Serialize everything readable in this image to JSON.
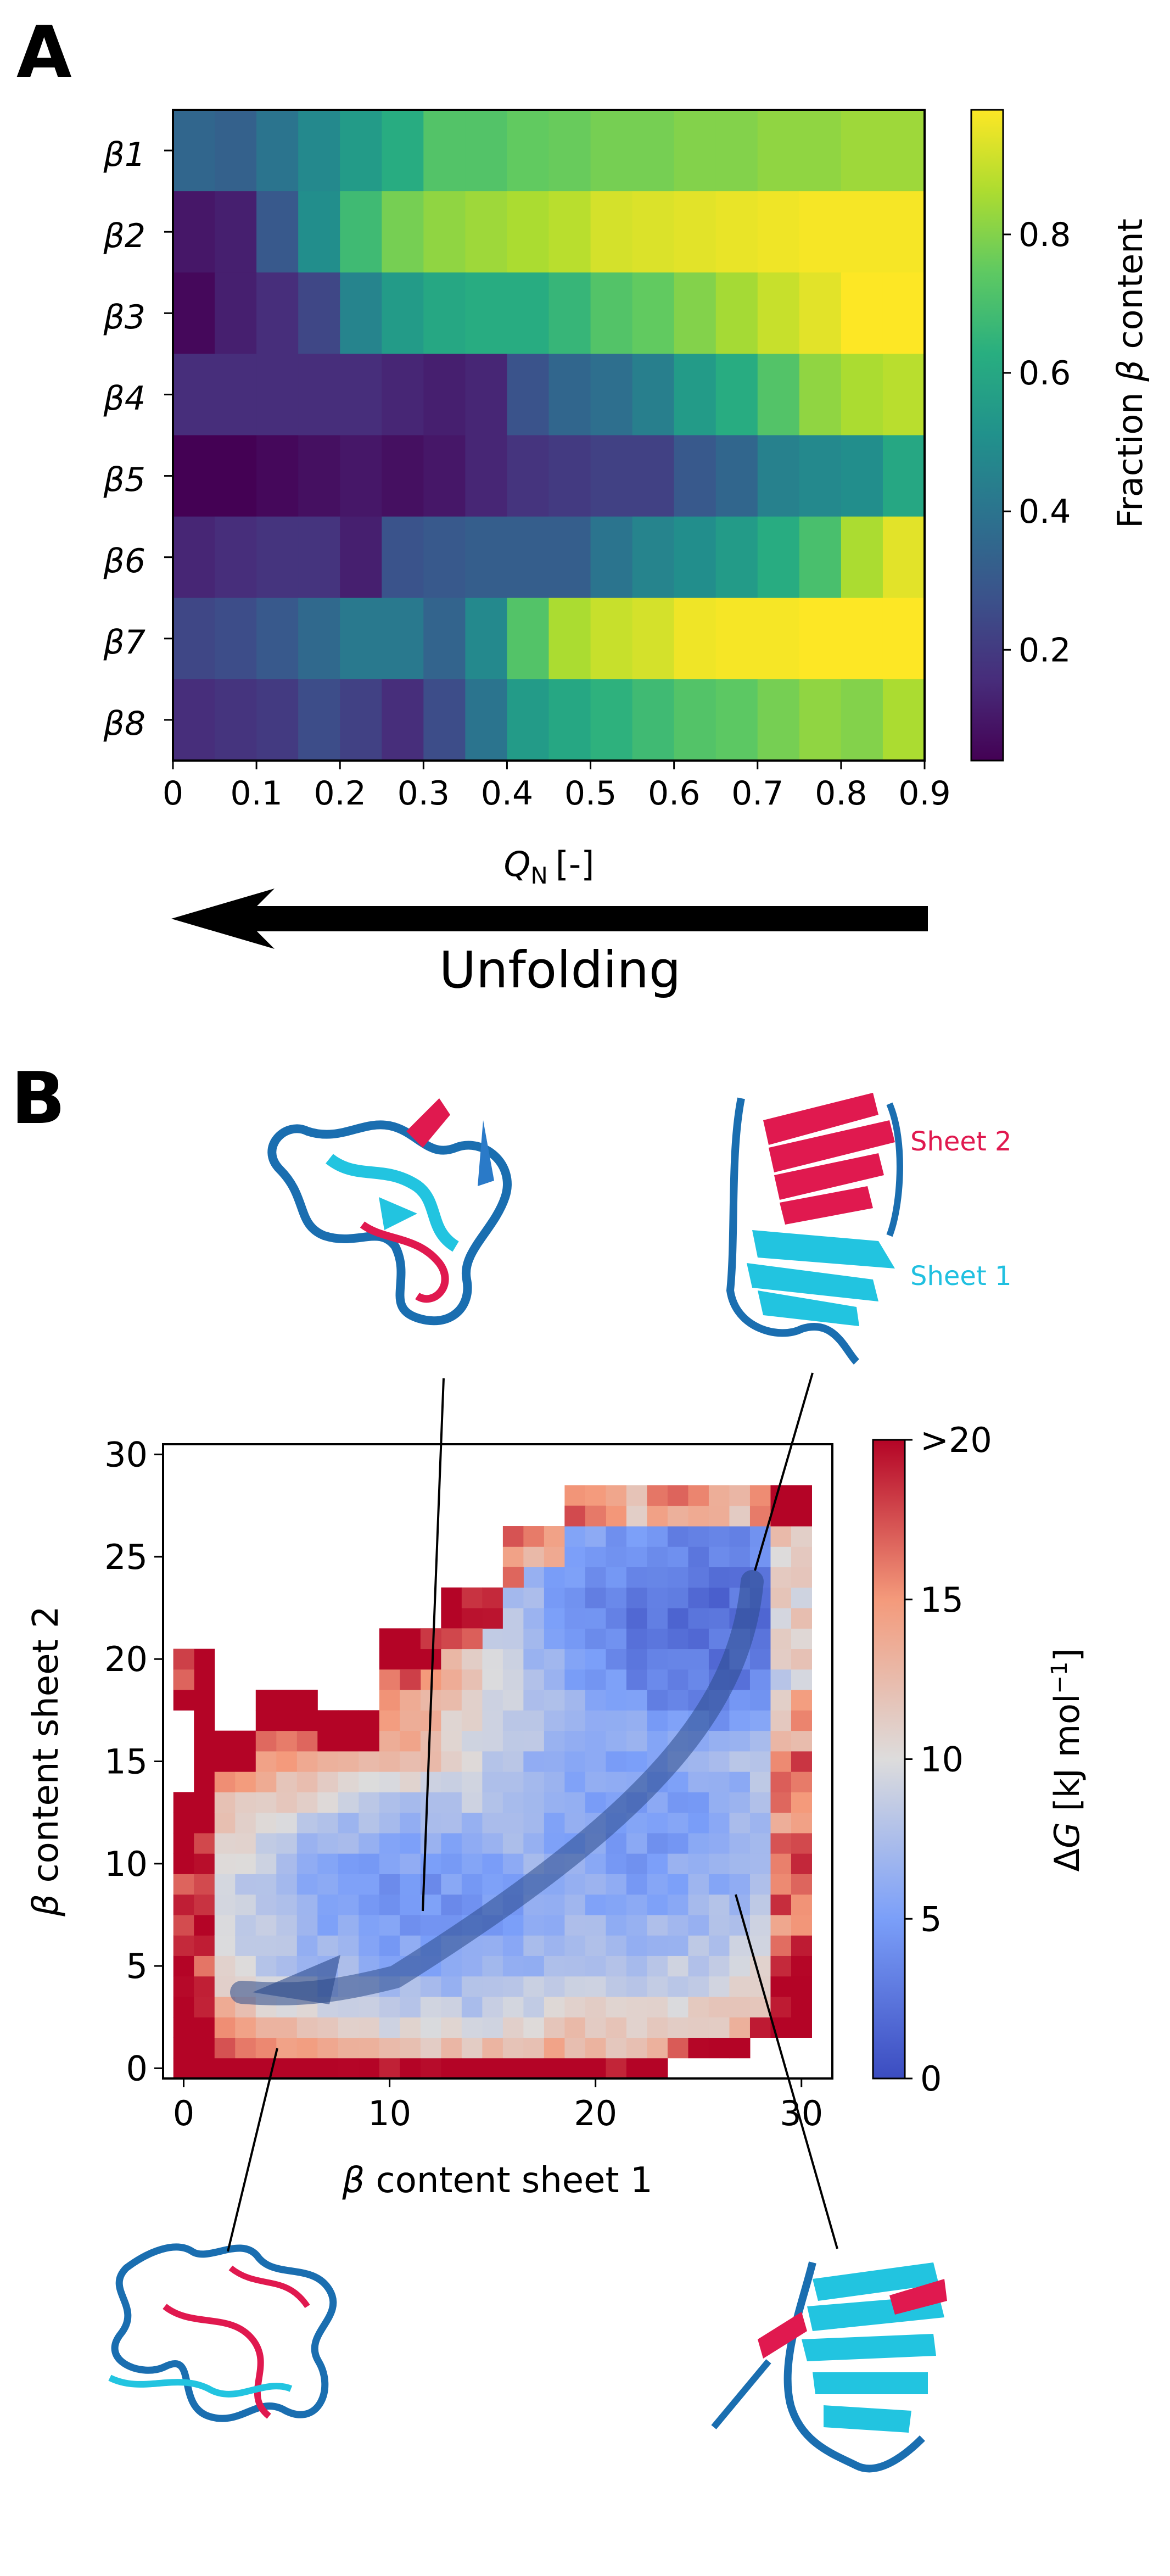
{
  "panelA": {
    "label": "A",
    "unfolding_label": "Unfolding",
    "chart_data": {
      "type": "heatmap",
      "xlabel": "Q",
      "xlabel_sub": "N",
      "xlabel_unit": "[-]",
      "x_ticks": [
        "0",
        "0.1",
        "0.2",
        "0.3",
        "0.4",
        "0.5",
        "0.6",
        "0.7",
        "0.8",
        "0.9"
      ],
      "xlim": [
        0,
        0.9
      ],
      "bin_width": 0.05,
      "rows": [
        "β1",
        "β2",
        "β3",
        "β4",
        "β5",
        "β6",
        "β7",
        "β8"
      ],
      "colorbar_label_pre": "Fraction ",
      "colorbar_label_beta": "β",
      "colorbar_label_post": " content",
      "colorbar_ticks": [
        "0.2",
        "0.4",
        "0.6",
        "0.8"
      ],
      "colorbar_tick_values": [
        0.2,
        0.4,
        0.6,
        0.8
      ],
      "vmin": 0.04,
      "vmax": 0.98,
      "values": [
        [
          0.35,
          0.33,
          0.4,
          0.48,
          0.55,
          0.62,
          0.72,
          0.72,
          0.75,
          0.76,
          0.78,
          0.78,
          0.8,
          0.8,
          0.82,
          0.82,
          0.84,
          0.84
        ],
        [
          0.1,
          0.12,
          0.3,
          0.5,
          0.68,
          0.78,
          0.82,
          0.84,
          0.86,
          0.88,
          0.92,
          0.93,
          0.94,
          0.95,
          0.96,
          0.97,
          0.97,
          0.97
        ],
        [
          0.06,
          0.12,
          0.16,
          0.24,
          0.46,
          0.55,
          0.6,
          0.62,
          0.62,
          0.66,
          0.72,
          0.75,
          0.8,
          0.85,
          0.9,
          0.94,
          0.98,
          0.98
        ],
        [
          0.16,
          0.16,
          0.16,
          0.16,
          0.16,
          0.14,
          0.12,
          0.14,
          0.28,
          0.35,
          0.38,
          0.44,
          0.55,
          0.62,
          0.72,
          0.82,
          0.86,
          0.88
        ],
        [
          0.04,
          0.04,
          0.06,
          0.08,
          0.1,
          0.08,
          0.1,
          0.14,
          0.18,
          0.2,
          0.22,
          0.22,
          0.3,
          0.35,
          0.45,
          0.48,
          0.5,
          0.6
        ],
        [
          0.14,
          0.16,
          0.18,
          0.18,
          0.12,
          0.28,
          0.3,
          0.32,
          0.32,
          0.32,
          0.4,
          0.46,
          0.5,
          0.55,
          0.62,
          0.7,
          0.86,
          0.94
        ],
        [
          0.24,
          0.26,
          0.3,
          0.36,
          0.42,
          0.42,
          0.34,
          0.48,
          0.72,
          0.86,
          0.9,
          0.92,
          0.96,
          0.97,
          0.97,
          0.98,
          0.98,
          0.98
        ],
        [
          0.16,
          0.18,
          0.2,
          0.26,
          0.22,
          0.16,
          0.26,
          0.4,
          0.55,
          0.6,
          0.64,
          0.68,
          0.72,
          0.74,
          0.78,
          0.82,
          0.8,
          0.86
        ]
      ]
    }
  },
  "panelB": {
    "label": "B",
    "sheet2_label": "Sheet 2",
    "sheet1_label": "Sheet 1",
    "sheet2_color": "#e0194f",
    "sheet1_color": "#20c0e0",
    "chart_data": {
      "type": "heatmap",
      "xlabel_beta": "β",
      "xlabel": " content sheet 1",
      "ylabel_beta": "β",
      "ylabel": " content sheet 2",
      "x_ticks": [
        "0",
        "10",
        "20",
        "30"
      ],
      "x_tick_values": [
        0,
        10,
        20,
        30
      ],
      "y_ticks": [
        "0",
        "5",
        "10",
        "15",
        "20",
        "25",
        "30"
      ],
      "y_tick_values": [
        0,
        5,
        10,
        15,
        20,
        25,
        30
      ],
      "xlim": [
        -1,
        31.5
      ],
      "ylim": [
        -0.5,
        30.5
      ],
      "colorbar_label_delta": "Δ",
      "colorbar_label_G": "G",
      "colorbar_label_unit": " [kJ mol",
      "colorbar_label_exp": "−1",
      "colorbar_label_close": "]",
      "colorbar_ticks": [
        "0",
        "5",
        "10",
        "15",
        ">20"
      ],
      "colorbar_tick_values": [
        0,
        5,
        10,
        15,
        20
      ],
      "vmin": 0,
      "vmax": 20,
      "free_energy_surface": "ΔG(sheet1, sheet2) estimated over bins 0–30 in each direction; minimum near (25, 22), secondary well near (12, 8), high energy at the sparse edges",
      "pathway_arrow": {
        "from": [
          27,
          23
        ],
        "via": [
          20,
          10
        ],
        "to": [
          3,
          4
        ]
      }
    }
  }
}
